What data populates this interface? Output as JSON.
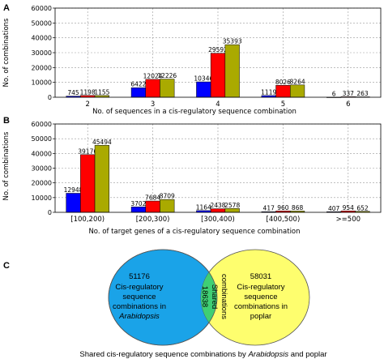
{
  "chart_data": [
    {
      "panel": "A",
      "type": "bar",
      "categories": [
        "2",
        "3",
        "4",
        "5",
        "6"
      ],
      "series": [
        {
          "color": "#0000ff",
          "values": [
            745,
            6422,
            10346,
            1119,
            6
          ]
        },
        {
          "color": "#ff0000",
          "values": [
            1198,
            12024,
            29592,
            8026,
            337
          ]
        },
        {
          "color": "#aaaa00",
          "values": [
            1155,
            12226,
            35393,
            8264,
            263
          ]
        }
      ],
      "data_labels": [
        [
          "745",
          "6422",
          "10346",
          "1119",
          "6"
        ],
        [
          "1198",
          "12024",
          "29592",
          "8026",
          "337"
        ],
        [
          "1155",
          "12226",
          "35393",
          "8264",
          "263"
        ]
      ],
      "xlabel": "No. of sequences in a cis-regulatory sequence combination",
      "ylabel": "No. of combinations",
      "ylim": [
        0,
        60000
      ],
      "yticks": [
        "0",
        "10000",
        "20000",
        "30000",
        "40000",
        "50000",
        "60000"
      ],
      "grid": true
    },
    {
      "panel": "B",
      "type": "bar",
      "categories": [
        "[100,200)",
        "[200,300)",
        "[300,400)",
        "[400,500)",
        ">=500"
      ],
      "series": [
        {
          "color": "#0000ff",
          "values": [
            12948,
            3702,
            1164,
            417,
            407
          ]
        },
        {
          "color": "#ff0000",
          "values": [
            39176,
            7684,
            2438,
            960,
            954
          ]
        },
        {
          "color": "#aaaa00",
          "values": [
            45494,
            8709,
            2578,
            868,
            652
          ]
        }
      ],
      "data_labels": [
        [
          "12948",
          "3702",
          "1164",
          "417",
          "407"
        ],
        [
          "39176",
          "7684",
          "2438",
          "960",
          "954"
        ],
        [
          "45494",
          "8709",
          "2578",
          "868",
          "652"
        ]
      ],
      "xlabel": "No. of target genes of a cis-regulatory sequence combination",
      "ylabel": "No. of combinations",
      "ylim": [
        0,
        60000
      ],
      "yticks": [
        "0",
        "10000",
        "20000",
        "30000",
        "40000",
        "50000",
        "60000"
      ],
      "grid": true
    }
  ],
  "venn": {
    "panel": "C",
    "left_color": "#1aa3e8",
    "right_color": "#fefe6e",
    "overlap_color": "#3fcf74",
    "left": {
      "count": "51176",
      "line1": "Cis-regulatory",
      "line2": "sequence",
      "line3": "combinations in",
      "line4": "Arabidopsis"
    },
    "right": {
      "count": "58031",
      "line1": "Cis-regulatory",
      "line2": "sequence",
      "line3": "combinations in",
      "line4": "poplar"
    },
    "overlap": {
      "count": "18638",
      "line1": "Shared",
      "line2": "combinations"
    },
    "caption_prefix": "Shared cis-regulatory sequence combinations by ",
    "caption_italic": "Arabidopsis",
    "caption_suffix": " and poplar"
  }
}
